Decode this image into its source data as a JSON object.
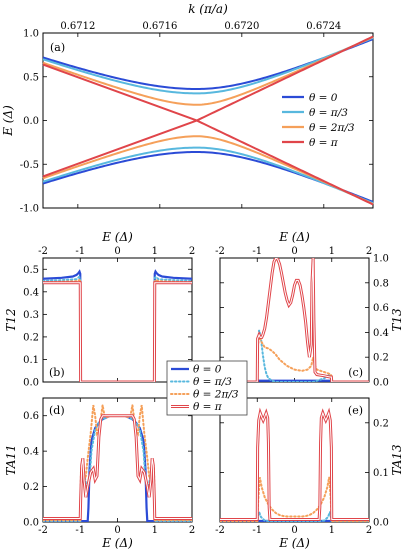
{
  "chart_data": [
    {
      "id": "a",
      "type": "line",
      "panel_label": "(a)",
      "xlabel": "k (π/a)",
      "ylabel": "E (Δ)",
      "x_ticks": [
        "0.6712",
        "0.6716",
        "0.6720",
        "0.6724"
      ],
      "x_tick_values": [
        0.6712,
        0.6716,
        0.672,
        0.6724
      ],
      "xlim": [
        0.67103,
        0.67264
      ],
      "y_ticks": [
        "-1.0",
        "-0.5",
        "0.0",
        "0.5",
        "1.0"
      ],
      "y_tick_values": [
        -1.0,
        -0.5,
        0.0,
        0.5,
        1.0
      ],
      "ylim": [
        -1.0,
        1.0
      ],
      "k_center": 0.67178,
      "legend_position": "right",
      "series": [
        {
          "name": "θ = 0",
          "color": "#2b4bd6",
          "gap": 0.36,
          "left_value": 0.72,
          "right_value": 0.93
        },
        {
          "name": "θ = π/3",
          "color": "#58b8de",
          "gap": 0.31,
          "left_value": 0.7,
          "right_value": 0.945
        },
        {
          "name": "θ = 2π/3",
          "color": "#f5a05a",
          "gap": 0.18,
          "left_value": 0.66,
          "right_value": 0.955
        },
        {
          "name": "θ = π",
          "color": "#e0454a",
          "gap": 0.0,
          "left_value": 0.64,
          "right_value": 0.96
        }
      ]
    },
    {
      "id": "b",
      "type": "line",
      "panel_label": "(b)",
      "xlabel": "E (Δ)",
      "ylabel": "T12",
      "x_ticks": [
        "-2",
        "-1",
        "0",
        "1",
        "2"
      ],
      "x_tick_values": [
        -2,
        -1,
        0,
        1,
        2
      ],
      "xlim": [
        -2,
        2
      ],
      "y_ticks": [
        "0.0",
        "0.1",
        "0.2",
        "0.3",
        "0.4",
        "0.5"
      ],
      "y_tick_values": [
        0,
        0.1,
        0.2,
        0.3,
        0.4,
        0.5
      ],
      "ylim": [
        0,
        0.55
      ],
      "series": [
        {
          "name": "θ = 0",
          "color": "#2b4bd6",
          "x": [
            -2,
            -1.5,
            -1.2,
            -1.1,
            -1.05,
            -1.02,
            -1.0,
            -0.99,
            0.99,
            1.0,
            1.02,
            1.05,
            1.1,
            1.2,
            1.5,
            2
          ],
          "y": [
            0.458,
            0.462,
            0.468,
            0.475,
            0.483,
            0.49,
            0.48,
            0,
            0,
            0.48,
            0.49,
            0.483,
            0.475,
            0.468,
            0.462,
            0.458
          ]
        },
        {
          "name": "θ = π/3",
          "color": "#58b8de",
          "x": [
            -2,
            -1.5,
            -1.1,
            -1.03,
            -1.0,
            -0.99,
            0.99,
            1.0,
            1.03,
            1.1,
            1.5,
            2
          ],
          "y": [
            0.448,
            0.452,
            0.456,
            0.466,
            0.462,
            0,
            0,
            0.462,
            0.466,
            0.456,
            0.452,
            0.448
          ]
        },
        {
          "name": "θ = 2π/3",
          "color": "#f5a05a",
          "x": [
            -2,
            -1.5,
            -1.1,
            -1.03,
            -1.0,
            -0.99,
            0.99,
            1.0,
            1.03,
            1.1,
            1.5,
            2
          ],
          "y": [
            0.442,
            0.445,
            0.447,
            0.452,
            0.448,
            0,
            0,
            0.448,
            0.452,
            0.447,
            0.445,
            0.442
          ]
        },
        {
          "name": "θ = π",
          "color": "#e0454a",
          "x": [
            -2,
            -1.5,
            -1.0,
            -0.99,
            0.99,
            1.0,
            1.5,
            2
          ],
          "y": [
            0.44,
            0.44,
            0.44,
            0,
            0,
            0.44,
            0.44,
            0.44
          ]
        }
      ]
    },
    {
      "id": "c",
      "type": "line",
      "panel_label": "(c)",
      "xlabel": "E (Δ)",
      "ylabel": "T13",
      "x_ticks": [
        "-2",
        "-1",
        "0",
        "1",
        "2"
      ],
      "x_tick_values": [
        -2,
        -1,
        0,
        1,
        2
      ],
      "xlim": [
        -2,
        2
      ],
      "y_ticks": [
        "0.0",
        "0.2",
        "0.4",
        "0.6",
        "0.8",
        "1.0"
      ],
      "y_tick_values": [
        0,
        0.2,
        0.4,
        0.6,
        0.8,
        1.0
      ],
      "ylim": [
        0,
        1.0
      ],
      "series": [
        {
          "name": "θ = 0",
          "color": "#2b4bd6",
          "x": [
            -2,
            -1.0,
            -0.99,
            -0.97,
            0.97,
            0.99,
            1.0,
            2
          ],
          "y": [
            0,
            0,
            0.01,
            0.01,
            0.01,
            0.01,
            0,
            0
          ]
        },
        {
          "name": "θ = π/3",
          "color": "#58b8de",
          "x": [
            -2,
            -1.0,
            -0.98,
            -0.95,
            -0.9,
            -0.85,
            -0.8,
            -0.75,
            -0.7,
            -0.6,
            -0.5,
            0.5,
            0.6,
            0.8,
            0.95,
            1.0,
            2
          ],
          "y": [
            0,
            0,
            0.3,
            0.42,
            0.35,
            0.22,
            0.12,
            0.06,
            0.03,
            0.01,
            0.0,
            0.0,
            0.01,
            0.03,
            0.06,
            0,
            0
          ]
        },
        {
          "name": "θ = 2π/3",
          "color": "#f5a05a",
          "x": [
            -2,
            -1.0,
            -0.98,
            -0.95,
            -0.9,
            -0.8,
            -0.7,
            -0.6,
            -0.5,
            -0.4,
            -0.2,
            0.0,
            0.2,
            0.35,
            0.45,
            0.5,
            0.55,
            0.6,
            0.7,
            0.8,
            0.9,
            0.98,
            1.0,
            2
          ],
          "y": [
            0,
            0,
            0.3,
            0.38,
            0.33,
            0.28,
            0.27,
            0.25,
            0.22,
            0.18,
            0.13,
            0.1,
            0.09,
            0.1,
            0.13,
            0.2,
            0.13,
            0.1,
            0.09,
            0.08,
            0.07,
            0.06,
            0,
            0
          ]
        },
        {
          "name": "θ = π",
          "color": "#e0454a",
          "x": [
            -2,
            -1.0,
            -0.99,
            -0.95,
            -0.92,
            -0.88,
            -0.85,
            -0.8,
            -0.75,
            -0.7,
            -0.6,
            -0.55,
            -0.5,
            -0.45,
            -0.4,
            -0.35,
            -0.3,
            -0.25,
            -0.2,
            -0.15,
            -0.1,
            -0.05,
            0.0,
            0.05,
            0.1,
            0.15,
            0.2,
            0.25,
            0.3,
            0.35,
            0.4,
            0.45,
            0.47,
            0.5,
            0.52,
            0.55,
            0.6,
            0.8,
            0.95,
            0.99,
            1.0,
            2
          ],
          "y": [
            0,
            0,
            0.35,
            0.38,
            0.36,
            0.36,
            0.38,
            0.43,
            0.52,
            0.64,
            0.88,
            0.97,
            1.0,
            0.99,
            0.95,
            0.88,
            0.8,
            0.72,
            0.66,
            0.62,
            0.64,
            0.7,
            0.78,
            0.82,
            0.82,
            0.78,
            0.7,
            0.6,
            0.48,
            0.32,
            0.2,
            0.3,
            0.8,
            1.0,
            0.5,
            0.08,
            0.06,
            0.05,
            0.04,
            0.04,
            0,
            0
          ]
        }
      ]
    },
    {
      "id": "d",
      "type": "line",
      "panel_label": "(d)",
      "xlabel": "E (Δ)",
      "ylabel": "TA11",
      "x_ticks": [
        "-2",
        "-1",
        "0",
        "1",
        "2"
      ],
      "x_tick_values": [
        -2,
        -1,
        0,
        1,
        2
      ],
      "xlim": [
        -2,
        2
      ],
      "y_ticks": [
        "0.0",
        "0.2",
        "0.4",
        "0.6"
      ],
      "y_tick_values": [
        0,
        0.2,
        0.4,
        0.6
      ],
      "ylim": [
        0,
        0.7
      ],
      "series": [
        {
          "name": "θ = 0",
          "color": "#2b4bd6",
          "x": [
            -2,
            -0.8,
            -0.78,
            -0.75,
            -0.7,
            -0.6,
            -0.5,
            -0.4,
            -0.3,
            -0.2,
            0.2,
            0.3,
            0.4,
            0.5,
            0.6,
            0.7,
            0.75,
            0.78,
            0.8,
            2
          ],
          "y": [
            0.005,
            0.005,
            0.08,
            0.3,
            0.46,
            0.53,
            0.56,
            0.58,
            0.59,
            0.6,
            0.6,
            0.59,
            0.58,
            0.56,
            0.53,
            0.46,
            0.3,
            0.08,
            0.005,
            0.005
          ]
        },
        {
          "name": "θ = π/3",
          "color": "#58b8de",
          "x": [
            -2,
            -1.0,
            -0.98,
            -0.96,
            -0.93,
            -0.9,
            -0.85,
            -0.8,
            -0.75,
            -0.7,
            -0.6,
            -0.5,
            -0.4,
            -0.3,
            -0.2,
            0.2,
            0.3,
            0.4,
            0.5,
            0.6,
            0.7,
            0.75,
            0.8,
            0.85,
            0.9,
            0.93,
            0.96,
            0.98,
            1.0,
            2
          ],
          "y": [
            0.005,
            0.005,
            0.2,
            0.32,
            0.36,
            0.28,
            0.22,
            0.18,
            0.24,
            0.4,
            0.52,
            0.56,
            0.58,
            0.59,
            0.6,
            0.6,
            0.59,
            0.58,
            0.56,
            0.52,
            0.4,
            0.24,
            0.18,
            0.22,
            0.28,
            0.36,
            0.32,
            0.2,
            0.005,
            0.005
          ]
        },
        {
          "name": "θ = 2π/3",
          "color": "#f5a05a",
          "x": [
            -2,
            -1.0,
            -0.98,
            -0.95,
            -0.92,
            -0.88,
            -0.85,
            -0.8,
            -0.72,
            -0.65,
            -0.6,
            -0.55,
            -0.5,
            -0.45,
            -0.4,
            -0.35,
            -0.3,
            -0.2,
            0.2,
            0.3,
            0.35,
            0.4,
            0.45,
            0.5,
            0.55,
            0.6,
            0.65,
            0.72,
            0.8,
            0.85,
            0.88,
            0.92,
            0.95,
            0.98,
            1.0,
            2
          ],
          "y": [
            0.01,
            0.01,
            0.3,
            0.35,
            0.29,
            0.24,
            0.26,
            0.36,
            0.5,
            0.66,
            0.6,
            0.5,
            0.52,
            0.58,
            0.66,
            0.6,
            0.59,
            0.6,
            0.6,
            0.59,
            0.6,
            0.66,
            0.58,
            0.52,
            0.5,
            0.6,
            0.66,
            0.5,
            0.36,
            0.26,
            0.24,
            0.29,
            0.35,
            0.3,
            0.01,
            0.01
          ]
        },
        {
          "name": "θ = π",
          "color": "#e0454a",
          "x": [
            -2,
            -1.0,
            -0.99,
            -0.96,
            -0.93,
            -0.9,
            -0.85,
            -0.8,
            -0.72,
            -0.65,
            -0.6,
            -0.55,
            -0.5,
            -0.45,
            -0.4,
            -0.3,
            -0.2,
            0.2,
            0.3,
            0.4,
            0.45,
            0.5,
            0.55,
            0.6,
            0.65,
            0.72,
            0.8,
            0.85,
            0.9,
            0.93,
            0.96,
            0.99,
            1.0,
            2
          ],
          "y": [
            0.02,
            0.02,
            0.12,
            0.32,
            0.36,
            0.24,
            0.14,
            0.2,
            0.28,
            0.3,
            0.24,
            0.26,
            0.48,
            0.58,
            0.6,
            0.6,
            0.6,
            0.6,
            0.6,
            0.6,
            0.58,
            0.48,
            0.26,
            0.24,
            0.3,
            0.28,
            0.2,
            0.14,
            0.24,
            0.36,
            0.32,
            0.12,
            0.02,
            0.02
          ]
        }
      ]
    },
    {
      "id": "e",
      "type": "line",
      "panel_label": "(e)",
      "xlabel": "E (Δ)",
      "ylabel": "TA13",
      "x_ticks": [
        "-2",
        "-1",
        "0",
        "1",
        "2"
      ],
      "x_tick_values": [
        -2,
        -1,
        0,
        1,
        2
      ],
      "xlim": [
        -2,
        2
      ],
      "y_ticks": [
        "0.0",
        "0.1",
        "0.2"
      ],
      "y_tick_values": [
        0,
        0.1,
        0.2
      ],
      "ylim": [
        0,
        0.25
      ],
      "series": [
        {
          "name": "θ = 0",
          "color": "#2b4bd6",
          "x": [
            -2,
            2
          ],
          "y": [
            0.002,
            0.002
          ]
        },
        {
          "name": "θ = π/3",
          "color": "#58b8de",
          "x": [
            -2,
            -1.0,
            -0.95,
            -0.9,
            -0.8,
            -0.7,
            0.7,
            0.8,
            0.9,
            0.95,
            1.0,
            2
          ],
          "y": [
            0,
            0,
            0.02,
            0.01,
            0.003,
            0.002,
            0.002,
            0.003,
            0.01,
            0.02,
            0,
            0
          ]
        },
        {
          "name": "θ = 2π/3",
          "color": "#f5a05a",
          "x": [
            -2,
            -1.0,
            -0.97,
            -0.93,
            -0.88,
            -0.8,
            -0.7,
            -0.6,
            -0.5,
            -0.4,
            -0.3,
            -0.2,
            0.2,
            0.3,
            0.4,
            0.5,
            0.6,
            0.7,
            0.8,
            0.88,
            0.93,
            0.97,
            1.0,
            2
          ],
          "y": [
            0.002,
            0.002,
            0.05,
            0.09,
            0.07,
            0.05,
            0.035,
            0.025,
            0.018,
            0.014,
            0.012,
            0.011,
            0.011,
            0.012,
            0.014,
            0.018,
            0.025,
            0.035,
            0.05,
            0.07,
            0.09,
            0.05,
            0.002,
            0.002
          ]
        },
        {
          "name": "θ = π",
          "color": "#e0454a",
          "x": [
            -2,
            -1.0,
            -0.99,
            -0.96,
            -0.92,
            -0.88,
            -0.84,
            -0.8,
            -0.76,
            -0.72,
            -0.7,
            -0.68,
            -0.66,
            0.66,
            0.68,
            0.7,
            0.72,
            0.76,
            0.8,
            0.84,
            0.88,
            0.92,
            0.96,
            0.99,
            1.0,
            2
          ],
          "y": [
            0.005,
            0.005,
            0.15,
            0.205,
            0.22,
            0.212,
            0.205,
            0.212,
            0.22,
            0.21,
            0.16,
            0.03,
            0.005,
            0.005,
            0.03,
            0.16,
            0.21,
            0.22,
            0.212,
            0.205,
            0.212,
            0.22,
            0.205,
            0.15,
            0.005,
            0.005
          ]
        }
      ]
    }
  ],
  "legend_bottom": {
    "items": [
      {
        "name": "θ = 0",
        "color": "#2b4bd6",
        "style": "solid"
      },
      {
        "name": "θ = π/3",
        "color": "#58b8de",
        "style": "dotted"
      },
      {
        "name": "θ = 2π/3",
        "color": "#f5a05a",
        "style": "dotted"
      },
      {
        "name": "θ = π",
        "color": "#e0454a",
        "style": "double"
      }
    ]
  }
}
